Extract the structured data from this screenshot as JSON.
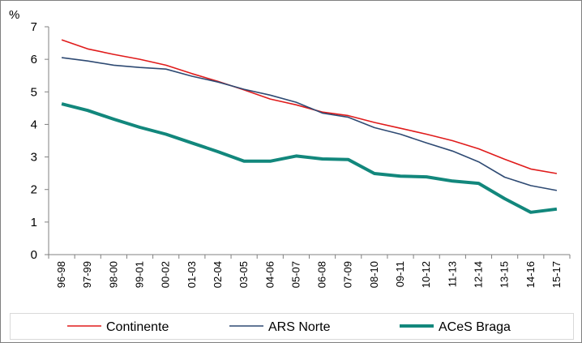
{
  "chart_data": {
    "type": "line",
    "ylabel": "%",
    "ylim": [
      0,
      7
    ],
    "yticks": [
      0,
      1,
      2,
      3,
      4,
      5,
      6,
      7
    ],
    "grid": false,
    "legend_position": "bottom",
    "categories": [
      "96-98",
      "97-99",
      "98-00",
      "99-01",
      "00-02",
      "01-03",
      "02-04",
      "03-05",
      "04-06",
      "05-07",
      "06-08",
      "07-09",
      "08-10",
      "09-11",
      "10-12",
      "11-13",
      "12-14",
      "13-15",
      "14-16",
      "15-17"
    ],
    "series": [
      {
        "name": "Continente",
        "color": "#e01b1b",
        "values": [
          6.6,
          6.32,
          6.15,
          6.0,
          5.82,
          5.56,
          5.32,
          5.06,
          4.78,
          4.6,
          4.38,
          4.27,
          4.06,
          3.88,
          3.7,
          3.5,
          3.25,
          2.93,
          2.63,
          2.49
        ]
      },
      {
        "name": "ARS Norte",
        "color": "#2e4a73",
        "values": [
          6.05,
          5.95,
          5.82,
          5.75,
          5.7,
          5.48,
          5.3,
          5.08,
          4.9,
          4.68,
          4.35,
          4.22,
          3.9,
          3.7,
          3.43,
          3.18,
          2.85,
          2.38,
          2.12,
          1.97
        ]
      },
      {
        "name": "ACeS Braga",
        "color": "#12877c",
        "values": [
          4.63,
          4.43,
          4.16,
          3.91,
          3.7,
          3.43,
          3.16,
          2.87,
          2.87,
          3.03,
          2.94,
          2.92,
          2.49,
          2.41,
          2.39,
          2.26,
          2.19,
          1.72,
          1.3,
          1.4
        ]
      }
    ]
  }
}
